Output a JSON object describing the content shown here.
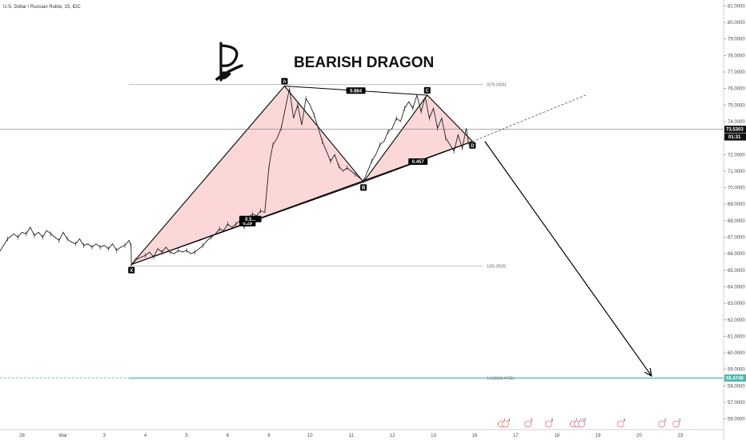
{
  "header": {
    "symbol_line": "U.S. Dollar / Russian Ruble, 15, IDC"
  },
  "title": "BEARISH DRAGON",
  "colors": {
    "pattern_fill": "#f9b7b7",
    "pattern_stroke": "#000000",
    "price_line": "#222222",
    "target_line": "#4db6ac",
    "axis_bg": "#ffffff",
    "label_bg": "#000000"
  },
  "chart_data": {
    "type": "line",
    "title": "BEARISH DRAGON",
    "y_axis": {
      "min": 55.5,
      "max": 81.3,
      "ticks": [
        "81.0000",
        "80.0000",
        "79.0000",
        "78.0000",
        "77.0000",
        "76.0000",
        "75.0000",
        "74.0000",
        "73.0000",
        "72.0000",
        "71.0000",
        "70.0000",
        "69.0000",
        "68.0000",
        "67.0000",
        "66.0000",
        "65.0000",
        "64.0000",
        "63.0000",
        "62.0000",
        "61.0000",
        "60.0000",
        "59.0000",
        "58.0000",
        "57.0000",
        "56.0000"
      ],
      "position": "right"
    },
    "x_axis": {
      "ticks": [
        {
          "label": "28",
          "day": 0
        },
        {
          "label": "Mar",
          "day": 1
        },
        {
          "label": "3",
          "day": 2
        },
        {
          "label": "4",
          "day": 3
        },
        {
          "label": "5",
          "day": 4
        },
        {
          "label": "6",
          "day": 5
        },
        {
          "label": "9",
          "day": 6
        },
        {
          "label": "10",
          "day": 7
        },
        {
          "label": "11",
          "day": 8
        },
        {
          "label": "12",
          "day": 9
        },
        {
          "label": "13",
          "day": 10
        },
        {
          "label": "16",
          "day": 11
        },
        {
          "label": "17",
          "day": 12
        },
        {
          "label": "18",
          "day": 13
        },
        {
          "label": "19",
          "day": 14
        },
        {
          "label": "20",
          "day": 15
        },
        {
          "label": "23",
          "day": 16
        }
      ]
    },
    "price_series": {
      "name": "USDRUB",
      "points": [
        [
          -0.55,
          66.1
        ],
        [
          -0.45,
          66.5
        ],
        [
          -0.35,
          66.9
        ],
        [
          -0.2,
          67.2
        ],
        [
          -0.1,
          67.0
        ],
        [
          0.0,
          67.3
        ],
        [
          0.1,
          67.2
        ],
        [
          0.2,
          67.6
        ],
        [
          0.3,
          67.1
        ],
        [
          0.4,
          67.3
        ],
        [
          0.5,
          67.0
        ],
        [
          0.6,
          67.4
        ],
        [
          0.7,
          67.2
        ],
        [
          0.8,
          67.0
        ],
        [
          0.9,
          66.8
        ],
        [
          1.0,
          67.3
        ],
        [
          1.1,
          66.9
        ],
        [
          1.2,
          66.7
        ],
        [
          1.3,
          66.6
        ],
        [
          1.4,
          66.9
        ],
        [
          1.5,
          66.5
        ],
        [
          1.6,
          66.6
        ],
        [
          1.7,
          66.4
        ],
        [
          1.8,
          66.6
        ],
        [
          1.9,
          66.4
        ],
        [
          2.0,
          66.5
        ],
        [
          2.1,
          66.3
        ],
        [
          2.2,
          66.6
        ],
        [
          2.3,
          66.2
        ],
        [
          2.4,
          66.4
        ],
        [
          2.5,
          66.5
        ],
        [
          2.6,
          66.8
        ],
        [
          2.65,
          66.5
        ],
        [
          2.66,
          65.3
        ],
        [
          2.75,
          65.6
        ],
        [
          2.9,
          65.8
        ],
        [
          3.0,
          65.9
        ],
        [
          3.1,
          66.1
        ],
        [
          3.2,
          65.8
        ],
        [
          3.3,
          66.3
        ],
        [
          3.4,
          66.1
        ],
        [
          3.5,
          66.4
        ],
        [
          3.6,
          66.1
        ],
        [
          3.7,
          66.0
        ],
        [
          3.8,
          66.2
        ],
        [
          3.9,
          66.1
        ],
        [
          4.0,
          66.2
        ],
        [
          4.1,
          66.0
        ],
        [
          4.2,
          66.1
        ],
        [
          4.3,
          66.3
        ],
        [
          4.4,
          66.5
        ],
        [
          4.5,
          66.8
        ],
        [
          4.6,
          67.0
        ],
        [
          4.7,
          67.2
        ],
        [
          4.8,
          67.5
        ],
        [
          4.9,
          67.4
        ],
        [
          5.0,
          67.8
        ],
        [
          5.1,
          67.6
        ],
        [
          5.2,
          67.8
        ],
        [
          5.3,
          68.0
        ],
        [
          5.4,
          67.6
        ],
        [
          5.5,
          68.2
        ],
        [
          5.6,
          68.4
        ],
        [
          5.7,
          68.3
        ],
        [
          5.8,
          68.6
        ],
        [
          5.9,
          68.5
        ],
        [
          6.0,
          71.2
        ],
        [
          6.05,
          72.0
        ],
        [
          6.1,
          72.6
        ],
        [
          6.2,
          73.0
        ],
        [
          6.3,
          73.6
        ],
        [
          6.4,
          74.8
        ],
        [
          6.5,
          76.0
        ],
        [
          6.6,
          74.2
        ],
        [
          6.7,
          75.0
        ],
        [
          6.8,
          73.8
        ],
        [
          6.9,
          75.4
        ],
        [
          7.0,
          75.0
        ],
        [
          7.1,
          74.4
        ],
        [
          7.2,
          73.6
        ],
        [
          7.3,
          72.8
        ],
        [
          7.4,
          72.2
        ],
        [
          7.5,
          71.6
        ],
        [
          7.6,
          72.0
        ],
        [
          7.7,
          71.3
        ],
        [
          7.8,
          71.0
        ],
        [
          7.9,
          71.2
        ],
        [
          8.0,
          71.0
        ],
        [
          8.1,
          70.8
        ],
        [
          8.2,
          70.6
        ],
        [
          8.3,
          70.4
        ],
        [
          8.4,
          71.0
        ],
        [
          8.5,
          71.6
        ],
        [
          8.6,
          72.0
        ],
        [
          8.7,
          72.6
        ],
        [
          8.8,
          72.8
        ],
        [
          8.9,
          73.4
        ],
        [
          9.0,
          73.6
        ],
        [
          9.1,
          74.2
        ],
        [
          9.2,
          74.0
        ],
        [
          9.3,
          74.8
        ],
        [
          9.4,
          75.2
        ],
        [
          9.5,
          74.8
        ],
        [
          9.6,
          75.6
        ],
        [
          9.7,
          74.6
        ],
        [
          9.8,
          75.5
        ],
        [
          9.9,
          74.2
        ],
        [
          10.0,
          74.8
        ],
        [
          10.1,
          73.6
        ],
        [
          10.2,
          74.2
        ],
        [
          10.3,
          73.0
        ],
        [
          10.4,
          72.6
        ],
        [
          10.5,
          72.2
        ],
        [
          10.6,
          73.2
        ],
        [
          10.7,
          72.4
        ],
        [
          10.8,
          73.6
        ],
        [
          10.85,
          72.7
        ]
      ]
    },
    "pattern": {
      "points": [
        {
          "label": "X",
          "day": 2.66,
          "price": 65.35
        },
        {
          "label": "A",
          "day": 6.38,
          "price": 76.15
        },
        {
          "label": "B",
          "day": 8.3,
          "price": 70.35
        },
        {
          "label": "C",
          "day": 9.85,
          "price": 75.6
        },
        {
          "label": "D",
          "day": 10.95,
          "price": 72.8
        }
      ],
      "ratios": [
        {
          "text": "0.884",
          "between": [
            "A",
            "C"
          ]
        },
        {
          "text": "0.29",
          "between": [
            "X",
            "B"
          ]
        },
        {
          "text": "0.457",
          "between": [
            "B",
            "D"
          ]
        },
        {
          "text": "0.5...",
          "between": [
            "X",
            "B"
          ],
          "at": 0.55
        }
      ]
    },
    "fib_levels": [
      {
        "text": "0(76.2426)",
        "price": 76.24
      },
      {
        "text": "1(65.2609)",
        "price": 65.26
      },
      {
        "text": "1.618(58.4735)",
        "price": 58.47
      }
    ],
    "projection": {
      "start_day": 11.25,
      "start_price": 72.8,
      "end_day": 15.3,
      "end_price": 58.6
    },
    "trend_extension": {
      "start_day": 10.95,
      "start_price": 72.8,
      "end_day": 13.7,
      "end_price": 75.6
    },
    "current_price": "73.5303",
    "countdown": "01:31",
    "target_price": "58.4748",
    "events": [
      {
        "day": 11.65,
        "text": "1"
      },
      {
        "day": 11.75,
        "text": "4"
      },
      {
        "day": 12.3,
        "text": "5"
      },
      {
        "day": 12.8,
        "text": "8"
      },
      {
        "day": 13.4,
        "text": "1"
      },
      {
        "day": 13.5,
        "text": "12"
      },
      {
        "day": 13.6,
        "text": "2"
      },
      {
        "day": 14.55,
        "text": "4"
      },
      {
        "day": 15.55,
        "text": "2"
      },
      {
        "day": 15.9,
        "text": "3"
      }
    ]
  }
}
